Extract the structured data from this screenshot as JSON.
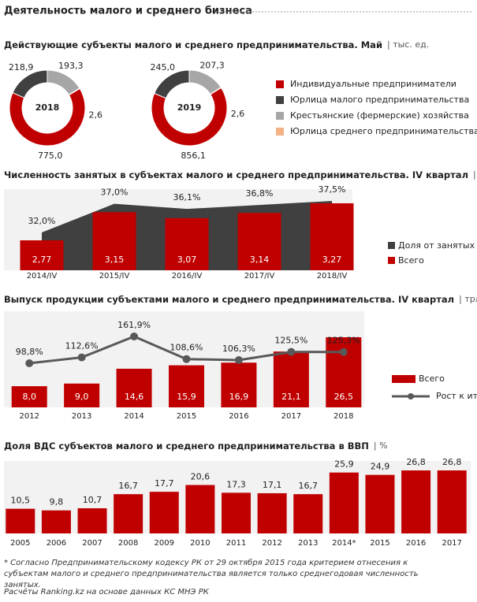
{
  "title": "Деятельность малого и среднего бизнеса",
  "chart_data": [
    {
      "type": "donut",
      "title": "Действующие субъекты малого и среднего предпринимательства. Май",
      "unit": "| тыс. ед.",
      "categories": [
        "Индивидуальные предприниматели",
        "Юрлица малого предпринимательства",
        "Крестьянские (фермерские) хозяйства",
        "Юрлица среднего предпринимательства"
      ],
      "colors": [
        "#c00000",
        "#404040",
        "#a6a6a6",
        "#f4b183"
      ],
      "series": [
        {
          "name": "2018",
          "values": [
            775.0,
            218.9,
            193.3,
            2.6
          ],
          "value_labels": [
            "775,0",
            "218,9",
            "193,3",
            "2,6"
          ]
        },
        {
          "name": "2019",
          "values": [
            856.1,
            245.0,
            207.3,
            2.6
          ],
          "value_labels": [
            "856,1",
            "245,0",
            "207,3",
            "2,6"
          ]
        }
      ]
    },
    {
      "type": "bar",
      "title": "Численность занятых в субъектах малого и среднего предпринимательства. IV квартал",
      "unit": "| млн чел.",
      "categories": [
        "2014/IV",
        "2015/IV",
        "2016/IV",
        "2017/IV",
        "2018/IV"
      ],
      "series": [
        {
          "name": "Доля от занятых",
          "type": "area",
          "color": "#404040",
          "values": [
            32.0,
            37.0,
            36.1,
            36.8,
            37.5
          ],
          "value_labels": [
            "32,0%",
            "37,0%",
            "36,1%",
            "36,8%",
            "37,5%"
          ]
        },
        {
          "name": "Всего",
          "type": "bar",
          "color": "#c00000",
          "values": [
            2.77,
            3.15,
            3.07,
            3.14,
            3.27
          ],
          "value_labels": [
            "2,77",
            "3,15",
            "3,07",
            "3,14",
            "3,27"
          ]
        }
      ]
    },
    {
      "type": "bar",
      "title": "Выпуск продукции субъектами малого и среднего предпринимательства. IV квартал",
      "unit": "| трлн тг",
      "categories": [
        "2012",
        "2013",
        "2014",
        "2015",
        "2016",
        "2017",
        "2018"
      ],
      "series": [
        {
          "name": "Всего",
          "type": "bar",
          "color": "#c00000",
          "values": [
            8.0,
            9.0,
            14.6,
            15.9,
            16.9,
            21.1,
            26.5
          ],
          "value_labels": [
            "8,0",
            "9,0",
            "14,6",
            "15,9",
            "16,9",
            "21,1",
            "26,5"
          ]
        },
        {
          "name": "Рост к итогу",
          "type": "line",
          "color": "#595959",
          "values": [
            98.8,
            112.6,
            161.9,
            108.6,
            106.3,
            125.5,
            125.3
          ],
          "value_labels": [
            "98,8%",
            "112,6%",
            "161,9%",
            "108,6%",
            "106,3%",
            "125,5%",
            "125,3%"
          ]
        }
      ]
    },
    {
      "type": "bar",
      "title": "Доля ВДС субъектов малого и среднего предпринимательства в ВВП",
      "unit": "| %",
      "categories": [
        "2005",
        "2006",
        "2007",
        "2008",
        "2009",
        "2010",
        "2011",
        "2012",
        "2013",
        "2014*",
        "2015",
        "2016",
        "2017"
      ],
      "color": "#c00000",
      "values": [
        10.5,
        9.8,
        10.7,
        16.7,
        17.7,
        20.6,
        17.3,
        17.1,
        16.7,
        25.9,
        24.9,
        26.8,
        26.8
      ],
      "value_labels": [
        "10,5",
        "9,8",
        "10,7",
        "16,7",
        "17,7",
        "20,6",
        "17,3",
        "17,1",
        "16,7",
        "25,9",
        "24,9",
        "26,8",
        "26,8"
      ]
    }
  ],
  "footnote": "* Согласно Предпринимательскому кодексу РК от 29 октября 2015 года критерием отнесения к субъектам малого и среднего предпринимательства является только среднегодовая численность занятых.",
  "source": "Расчёты Ranking.kz на основе данных КС МНЭ РК"
}
